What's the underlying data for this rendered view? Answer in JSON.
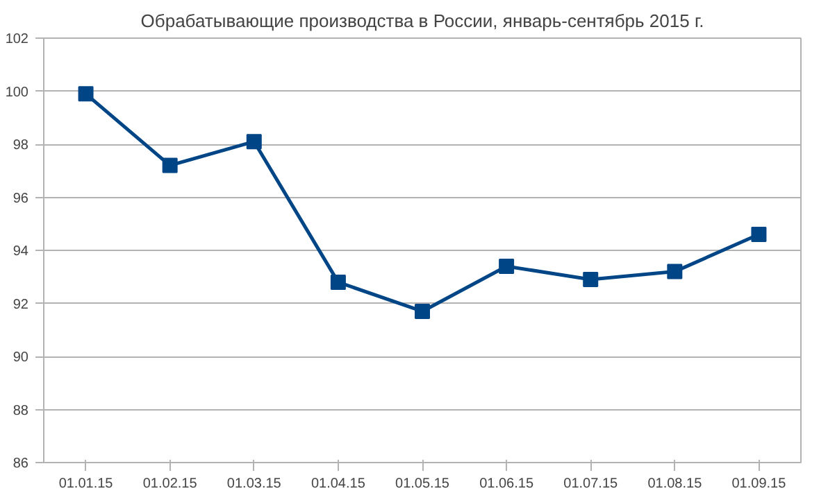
{
  "chart_data": {
    "type": "line",
    "title": "Обрабатывающие производства в России, январь-сентябрь 2015 г.",
    "categories": [
      "01.01.15",
      "01.02.15",
      "01.03.15",
      "01.04.15",
      "01.05.15",
      "01.06.15",
      "01.07.15",
      "01.08.15",
      "01.09.15"
    ],
    "series": [
      {
        "color": "#004586",
        "values": [
          99.9,
          97.2,
          98.1,
          92.8,
          91.7,
          93.4,
          92.9,
          93.2,
          94.6
        ]
      }
    ],
    "ylim": [
      86,
      102
    ],
    "yticks": [
      86,
      88,
      90,
      92,
      94,
      96,
      98,
      100,
      102
    ],
    "grid": "y",
    "marker": "square"
  }
}
